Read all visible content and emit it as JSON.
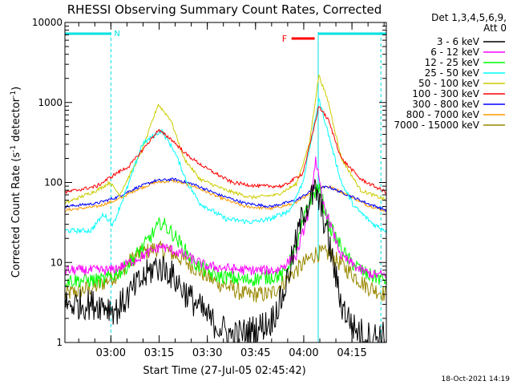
{
  "chart_data": {
    "type": "line",
    "title": "RHESSI Observing Summary Count Rates, Corrected",
    "xlabel": "Start Time (27-Jul-05 02:45:42)",
    "ylabel": "Corrected Count Rate (s⁻¹ detector⁻¹)",
    "ylabel_main": "Corrected Count Rate (s",
    "ylabel_sup1": "-1",
    "ylabel_mid": " detector",
    "ylabel_sup2": "-1",
    "ylabel_end": ")",
    "yscale": "log",
    "ylim": [
      1,
      10000
    ],
    "xlim_minutes": [
      0,
      100
    ],
    "x_ticks": [
      {
        "label": "03:00",
        "t": 14.3
      },
      {
        "label": "03:15",
        "t": 29.3
      },
      {
        "label": "03:30",
        "t": 44.3
      },
      {
        "label": "03:45",
        "t": 59.3
      },
      {
        "label": "04:00",
        "t": 74.3
      },
      {
        "label": "04:15",
        "t": 89.3
      }
    ],
    "y_ticks": [
      {
        "label": "1",
        "v": 1
      },
      {
        "label": "10",
        "v": 10
      },
      {
        "label": "100",
        "v": 100
      },
      {
        "label": "1000",
        "v": 1000
      },
      {
        "label": "10000",
        "v": 10000
      }
    ],
    "legend_header": [
      "Det 1,3,4,5,6,9,",
      "Att 0"
    ],
    "legend_position": "right",
    "series": [
      {
        "name": "3 - 6 keV",
        "color": "#000000",
        "noise": 0.45,
        "points": [
          [
            0,
            3
          ],
          [
            12,
            3
          ],
          [
            16,
            2.5
          ],
          [
            22,
            5
          ],
          [
            28,
            9
          ],
          [
            32,
            8
          ],
          [
            38,
            4
          ],
          [
            46,
            1.8
          ],
          [
            52,
            1.2
          ],
          [
            58,
            1.4
          ],
          [
            64,
            1.8
          ],
          [
            68,
            4
          ],
          [
            74,
            40
          ],
          [
            78,
            80
          ],
          [
            81,
            30
          ],
          [
            86,
            3
          ],
          [
            90,
            1.5
          ],
          [
            94,
            1.2
          ],
          [
            98,
            1.2
          ],
          [
            100,
            1.2
          ]
        ]
      },
      {
        "name": "6 - 12 keV",
        "color": "#ff00ff",
        "noise": 0.15,
        "points": [
          [
            0,
            8
          ],
          [
            14,
            8
          ],
          [
            18,
            9
          ],
          [
            24,
            12
          ],
          [
            30,
            16
          ],
          [
            36,
            13
          ],
          [
            44,
            9
          ],
          [
            56,
            8
          ],
          [
            66,
            8
          ],
          [
            72,
            12
          ],
          [
            76,
            45
          ],
          [
            78,
            200
          ],
          [
            80,
            60
          ],
          [
            86,
            12
          ],
          [
            92,
            8
          ],
          [
            96,
            7
          ],
          [
            100,
            7
          ]
        ]
      },
      {
        "name": "12 - 25 keV",
        "color": "#00ff00",
        "noise": 0.22,
        "points": [
          [
            0,
            6
          ],
          [
            12,
            6
          ],
          [
            18,
            8
          ],
          [
            24,
            15
          ],
          [
            30,
            32
          ],
          [
            34,
            22
          ],
          [
            40,
            10
          ],
          [
            46,
            7
          ],
          [
            56,
            6
          ],
          [
            68,
            7
          ],
          [
            72,
            15
          ],
          [
            76,
            60
          ],
          [
            79,
            90
          ],
          [
            82,
            30
          ],
          [
            88,
            11
          ],
          [
            94,
            7
          ],
          [
            100,
            6
          ]
        ]
      },
      {
        "name": "25 - 50 keV",
        "color": "#00ffff",
        "noise": 0.07,
        "points": [
          [
            0,
            25
          ],
          [
            8,
            25
          ],
          [
            12,
            40
          ],
          [
            15,
            30
          ],
          [
            20,
            100
          ],
          [
            24,
            300
          ],
          [
            30,
            450
          ],
          [
            34,
            250
          ],
          [
            38,
            100
          ],
          [
            42,
            55
          ],
          [
            50,
            35
          ],
          [
            58,
            32
          ],
          [
            64,
            35
          ],
          [
            70,
            45
          ],
          [
            74,
            100
          ],
          [
            77,
            400
          ],
          [
            79,
            1100
          ],
          [
            82,
            400
          ],
          [
            86,
            100
          ],
          [
            90,
            50
          ],
          [
            96,
            30
          ],
          [
            100,
            25
          ]
        ]
      },
      {
        "name": "50 - 100 keV",
        "color": "#cccc00",
        "noise": 0.05,
        "points": [
          [
            0,
            55
          ],
          [
            10,
            80
          ],
          [
            14,
            100
          ],
          [
            17,
            70
          ],
          [
            20,
            120
          ],
          [
            24,
            250
          ],
          [
            29,
            950
          ],
          [
            33,
            600
          ],
          [
            37,
            200
          ],
          [
            42,
            110
          ],
          [
            50,
            80
          ],
          [
            58,
            65
          ],
          [
            66,
            70
          ],
          [
            72,
            95
          ],
          [
            76,
            300
          ],
          [
            79,
            2200
          ],
          [
            82,
            1000
          ],
          [
            86,
            200
          ],
          [
            92,
            80
          ],
          [
            100,
            60
          ]
        ]
      },
      {
        "name": "100 - 300 keV",
        "color": "#ff0000",
        "noise": 0.05,
        "points": [
          [
            0,
            75
          ],
          [
            10,
            90
          ],
          [
            16,
            130
          ],
          [
            20,
            160
          ],
          [
            24,
            250
          ],
          [
            29,
            450
          ],
          [
            33,
            350
          ],
          [
            38,
            220
          ],
          [
            44,
            150
          ],
          [
            52,
            100
          ],
          [
            60,
            90
          ],
          [
            68,
            90
          ],
          [
            74,
            130
          ],
          [
            77,
            400
          ],
          [
            79,
            900
          ],
          [
            82,
            600
          ],
          [
            86,
            200
          ],
          [
            92,
            110
          ],
          [
            100,
            75
          ]
        ]
      },
      {
        "name": "300 - 800 keV",
        "color": "#0000ff",
        "noise": 0.04,
        "points": [
          [
            0,
            50
          ],
          [
            10,
            55
          ],
          [
            16,
            65
          ],
          [
            22,
            85
          ],
          [
            28,
            105
          ],
          [
            34,
            110
          ],
          [
            40,
            95
          ],
          [
            48,
            70
          ],
          [
            56,
            55
          ],
          [
            64,
            50
          ],
          [
            72,
            60
          ],
          [
            78,
            85
          ],
          [
            82,
            88
          ],
          [
            88,
            70
          ],
          [
            94,
            55
          ],
          [
            100,
            45
          ]
        ]
      },
      {
        "name": "800 - 7000 keV",
        "color": "#ff9900",
        "noise": 0.04,
        "points": [
          [
            0,
            45
          ],
          [
            10,
            50
          ],
          [
            16,
            60
          ],
          [
            22,
            80
          ],
          [
            28,
            100
          ],
          [
            34,
            105
          ],
          [
            40,
            90
          ],
          [
            48,
            65
          ],
          [
            56,
            50
          ],
          [
            64,
            47
          ],
          [
            72,
            55
          ],
          [
            78,
            85
          ],
          [
            82,
            90
          ],
          [
            88,
            70
          ],
          [
            94,
            52
          ],
          [
            100,
            44
          ]
        ]
      },
      {
        "name": "7000 - 15000 keV",
        "color": "#998800",
        "noise": 0.25,
        "points": [
          [
            0,
            4
          ],
          [
            10,
            5
          ],
          [
            16,
            7
          ],
          [
            22,
            12
          ],
          [
            28,
            15
          ],
          [
            32,
            14
          ],
          [
            38,
            10
          ],
          [
            46,
            6
          ],
          [
            56,
            4
          ],
          [
            64,
            4
          ],
          [
            72,
            8
          ],
          [
            78,
            13
          ],
          [
            82,
            13
          ],
          [
            88,
            8
          ],
          [
            94,
            5
          ],
          [
            100,
            4
          ]
        ]
      }
    ],
    "markers": {
      "night_label": "N",
      "night_periods": [
        [
          0,
          14.3
        ],
        [
          78.8,
          100
        ]
      ],
      "flare_label": "F",
      "flare_period": [
        70.5,
        77.7
      ],
      "boundaries": [
        0,
        14.3,
        78.8,
        98.3
      ]
    }
  },
  "footer": {
    "timestamp": "18-Oct-2021 14:19"
  }
}
